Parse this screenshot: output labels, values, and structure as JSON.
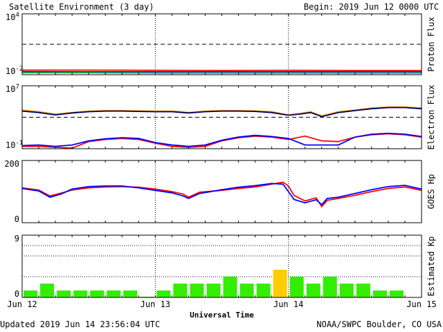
{
  "header": {
    "title": "Satellite Environment (3 day)",
    "begin": "Begin:  2019 Jun 12 0000 UTC"
  },
  "footer": {
    "updated": "Updated 2019 Jun 14 23:56:04 UTC",
    "credit": "NOAA/SWPC Boulder, CO USA"
  },
  "colors": {
    "red": "#ff0000",
    "blue": "#0000ff",
    "green": "#00ee00",
    "orange": "#ff9900",
    "navy": "#000066",
    "kp_normal": "#33ee00",
    "kp_high": "#ffcc00"
  },
  "chart_data": [
    {
      "type": "line",
      "id": "proton",
      "ylabel": "Proton Flux",
      "yscale": "log",
      "ylim": [
        0.01,
        10000
      ],
      "yticks": [
        {
          "base": "10",
          "exp": "4"
        },
        {
          "base": "10",
          "exp": "-2"
        }
      ],
      "threshold": 10,
      "series": [
        {
          "color": "red",
          "x": [
            0,
            12,
            24,
            36,
            48,
            60,
            72
          ],
          "y": [
            0.028,
            0.028,
            0.027,
            0.026,
            0.027,
            0.026,
            0.026
          ]
        },
        {
          "color": "blue",
          "x": [
            0,
            12,
            24,
            36,
            48,
            60,
            72
          ],
          "y": [
            0.02,
            0.019,
            0.019,
            0.019,
            0.019,
            0.019,
            0.019
          ]
        },
        {
          "color": "green",
          "x": [
            0,
            12,
            24,
            36,
            48,
            60,
            72
          ],
          "y": [
            0.015,
            0.015,
            0.014,
            0.014,
            0.014,
            0.014,
            0.014
          ]
        }
      ]
    },
    {
      "type": "line",
      "id": "electron",
      "ylabel": "Electron Flux",
      "yscale": "log",
      "ylim": [
        0.1,
        10000000
      ],
      "yticks": [
        {
          "base": "10",
          "exp": "7"
        },
        {
          "base": "10",
          "exp": "-1"
        }
      ],
      "threshold": 1000,
      "series": [
        {
          "color": "orange",
          "x": [
            0,
            3,
            6,
            9,
            12,
            15,
            18,
            21,
            24,
            27,
            30,
            33,
            36,
            39,
            42,
            45,
            48,
            50,
            52,
            54,
            57,
            60,
            63,
            66,
            69,
            72
          ],
          "y": [
            8000,
            5000,
            2500,
            4000,
            6000,
            7000,
            7000,
            6500,
            6000,
            6000,
            4000,
            6000,
            7000,
            7000,
            6500,
            5000,
            2000,
            3000,
            5000,
            1500,
            5000,
            8000,
            15000,
            20000,
            20000,
            15000
          ]
        },
        {
          "color": "navy",
          "x": [
            0,
            3,
            6,
            9,
            12,
            15,
            18,
            21,
            24,
            27,
            30,
            33,
            36,
            39,
            42,
            45,
            48,
            50,
            52,
            54,
            57,
            60,
            63,
            66,
            69,
            72
          ],
          "y": [
            6000,
            4000,
            2000,
            3500,
            5000,
            6000,
            6000,
            5500,
            5000,
            5000,
            3500,
            5000,
            6000,
            6000,
            5500,
            4000,
            1800,
            2500,
            4000,
            1200,
            4000,
            7000,
            12000,
            17000,
            17000,
            12000
          ]
        },
        {
          "color": "red",
          "x": [
            0,
            3,
            6,
            9,
            12,
            15,
            18,
            21,
            24,
            27,
            30,
            33,
            36,
            39,
            42,
            45,
            48,
            51,
            54,
            57,
            60,
            63,
            66,
            69,
            72
          ],
          "y": [
            0.2,
            0.2,
            0.15,
            0.12,
            0.8,
            1.5,
            2,
            1.5,
            0.5,
            0.2,
            0.15,
            0.2,
            1,
            2.5,
            4,
            3,
            1.5,
            4,
            1,
            0.8,
            3,
            6,
            8,
            6,
            3
          ]
        },
        {
          "color": "blue",
          "x": [
            0,
            3,
            6,
            9,
            12,
            15,
            18,
            21,
            24,
            27,
            30,
            33,
            36,
            39,
            42,
            45,
            48,
            51,
            54,
            57,
            60,
            63,
            66,
            69,
            72
          ],
          "y": [
            0.25,
            0.3,
            0.2,
            0.3,
            1,
            1.8,
            2.5,
            2,
            0.6,
            0.3,
            0.2,
            0.3,
            1.2,
            3,
            5,
            3.5,
            2,
            0.3,
            0.3,
            0.3,
            3,
            7,
            9,
            7,
            3.5
          ]
        }
      ]
    },
    {
      "type": "line",
      "id": "goes-hp",
      "ylabel": "GOES Hp",
      "yscale": "linear",
      "ylim": [
        0,
        200
      ],
      "yticks": [
        {
          "value": 200,
          "label": "200"
        },
        {
          "value": 0,
          "label": "0"
        }
      ],
      "series": [
        {
          "color": "red",
          "x": [
            0,
            3,
            5,
            7,
            9,
            12,
            15,
            18,
            21,
            24,
            27,
            29,
            30,
            32,
            36,
            39,
            42,
            45,
            47,
            48,
            49,
            51,
            53,
            54,
            55,
            57,
            60,
            63,
            66,
            69,
            72
          ],
          "y": [
            112,
            105,
            86,
            95,
            105,
            112,
            115,
            116,
            114,
            108,
            100,
            92,
            82,
            98,
            104,
            110,
            115,
            124,
            130,
            118,
            88,
            70,
            80,
            52,
            72,
            78,
            88,
            100,
            110,
            115,
            104
          ]
        },
        {
          "color": "blue",
          "x": [
            0,
            3,
            5,
            7,
            9,
            12,
            15,
            18,
            21,
            24,
            27,
            29,
            30,
            32,
            36,
            39,
            42,
            45,
            47,
            48,
            49,
            51,
            53,
            54,
            55,
            57,
            60,
            63,
            66,
            69,
            72
          ],
          "y": [
            110,
            102,
            82,
            92,
            108,
            116,
            118,
            118,
            112,
            104,
            96,
            86,
            78,
            94,
            106,
            114,
            119,
            126,
            124,
            100,
            75,
            64,
            74,
            58,
            78,
            82,
            94,
            106,
            116,
            120,
            108
          ]
        }
      ]
    },
    {
      "type": "bar",
      "id": "kp",
      "ylabel": "Estimated Kp",
      "ylim": [
        0,
        9
      ],
      "yticks": [
        {
          "value": 9,
          "label": "9"
        },
        {
          "value": 0,
          "label": "0"
        }
      ],
      "bar_hours": 3,
      "values": [
        1,
        2,
        1,
        1,
        1,
        1,
        1,
        0.1,
        1,
        2,
        2,
        2,
        3,
        2,
        2,
        4,
        3,
        2,
        3,
        2,
        2,
        1,
        1,
        0
      ],
      "xlabel": "Universal Time",
      "xticks": [
        "Jun 12",
        "Jun 13",
        "Jun 14",
        "Jun 15"
      ]
    }
  ]
}
